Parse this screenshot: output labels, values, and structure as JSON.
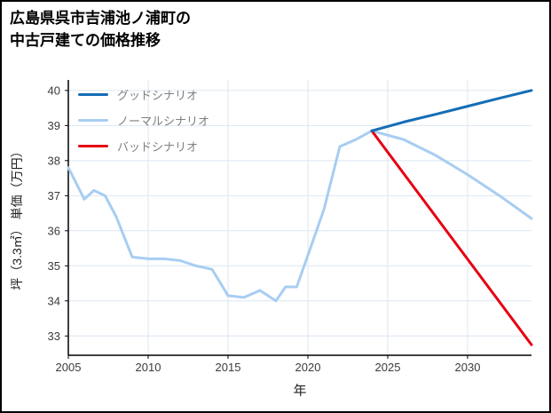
{
  "title": {
    "line1": "広島県呉市吉浦池ノ浦町の",
    "line2": "中古戸建ての価格推移"
  },
  "chart_data": {
    "type": "line",
    "title": "広島県呉市吉浦池ノ浦町の中古戸建ての価格推移",
    "xlabel": "年",
    "ylabel": "坪（3.3㎡） 単価（万円）",
    "xlim": [
      2005,
      2034
    ],
    "ylim": [
      32.45,
      40.3
    ],
    "xticks": [
      2005,
      2010,
      2015,
      2020,
      2025,
      2030
    ],
    "yticks": [
      33,
      34,
      35,
      36,
      37,
      38,
      39,
      40
    ],
    "grid": true,
    "legend_position": "top-left-inside",
    "colors": {
      "grid": "#dce6f2",
      "axis": "#000000",
      "tick_label": "#3b3b3b"
    },
    "series": [
      {
        "name": "グッドシナリオ",
        "key": "good",
        "color": "#146db6",
        "z": 2,
        "x": [
          2024,
          2026,
          2028,
          2030,
          2032,
          2034
        ],
        "y": [
          38.85,
          39.1,
          39.32,
          39.55,
          39.78,
          40.0
        ]
      },
      {
        "name": "ノーマルシナリオ",
        "key": "normal",
        "color": "#a8cdf2",
        "z": 0,
        "x": [
          2005,
          2006,
          2006.6,
          2007.3,
          2008,
          2009,
          2010,
          2011,
          2012,
          2013,
          2014,
          2015,
          2016,
          2017,
          2018,
          2018.6,
          2019.3,
          2020,
          2021,
          2022,
          2023,
          2024,
          2026,
          2028,
          2030,
          2032,
          2034
        ],
        "y": [
          37.8,
          36.9,
          37.15,
          37.0,
          36.4,
          35.25,
          35.2,
          35.2,
          35.15,
          35.0,
          34.9,
          34.15,
          34.1,
          34.3,
          34.0,
          34.4,
          34.4,
          35.3,
          36.6,
          38.4,
          38.6,
          38.85,
          38.6,
          38.15,
          37.6,
          37.0,
          36.35
        ]
      },
      {
        "name": "バッドシナリオ",
        "key": "bad",
        "color": "#e60012",
        "z": 1,
        "x": [
          2024,
          2034
        ],
        "y": [
          38.85,
          32.75
        ]
      }
    ]
  }
}
